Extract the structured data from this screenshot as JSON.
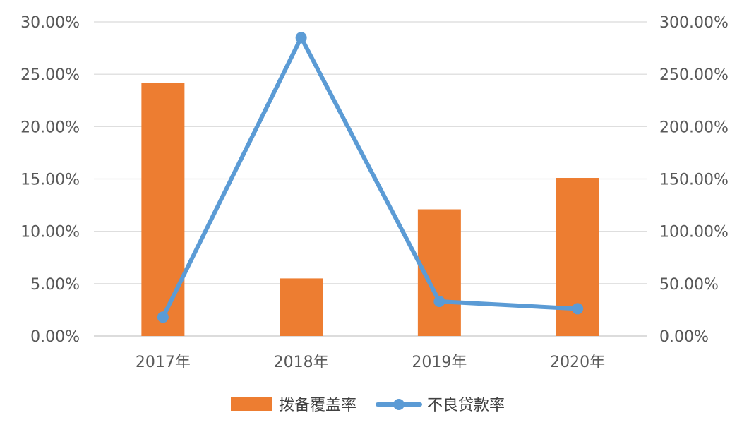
{
  "chart_data": {
    "type": "bar",
    "categories": [
      "2017年",
      "2018年",
      "2019年",
      "2020年"
    ],
    "series": [
      {
        "name": "拨备覆盖率",
        "type": "bar",
        "axis": "left",
        "color": "#ED7D31",
        "values": [
          24.2,
          5.5,
          12.1,
          15.1
        ]
      },
      {
        "name": "不良贷款率",
        "type": "line",
        "axis": "right",
        "color": "#5B9BD5",
        "values": [
          18,
          285,
          33,
          26
        ]
      }
    ],
    "y_left": {
      "min": 0,
      "max": 30,
      "ticks": [
        "0.00%",
        "5.00%",
        "10.00%",
        "15.00%",
        "20.00%",
        "25.00%",
        "30.00%"
      ]
    },
    "y_right": {
      "min": 0,
      "max": 300,
      "ticks": [
        "0.00%",
        "50.00%",
        "100.00%",
        "150.00%",
        "200.00%",
        "250.00%",
        "300.00%"
      ]
    },
    "grid": true,
    "legend": "bottom-center"
  }
}
